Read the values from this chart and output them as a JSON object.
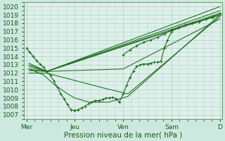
{
  "background_color": "#cce8df",
  "plot_bg_color": "#dff0eb",
  "grid_color": "#aacfc4",
  "line_color": "#1a6b1a",
  "ylabel_values": [
    1007,
    1008,
    1009,
    1010,
    1011,
    1012,
    1013,
    1014,
    1015,
    1016,
    1017,
    1018,
    1019,
    1020
  ],
  "xtick_labels": [
    "Mer",
    "Jeu",
    "Ven",
    "Sam",
    "D"
  ],
  "xlabel": "Pression niveau de la mer( hPa )",
  "ylim": [
    1006.5,
    1020.5
  ],
  "xlim": [
    -0.05,
    4.05
  ],
  "label_fontsize": 7.5,
  "tick_fontsize": 6.5,
  "obs_x": [
    0,
    0.07,
    0.14,
    0.21,
    0.28,
    0.35,
    0.42,
    0.5,
    0.57,
    0.64,
    0.71,
    0.78,
    0.85,
    0.92,
    1.0,
    1.07,
    1.14,
    1.21,
    1.28,
    1.35,
    1.42,
    1.5,
    1.57,
    1.64,
    1.71,
    1.78,
    1.85,
    1.92,
    2.0,
    2.07,
    2.14,
    2.21,
    2.28,
    2.35,
    2.42,
    2.5,
    2.57,
    2.64,
    2.71,
    2.78,
    2.85,
    2.92,
    3.0,
    3.14,
    3.28,
    3.42,
    3.57,
    3.71,
    3.85,
    4.0
  ],
  "obs_y": [
    1015.0,
    1014.5,
    1014.0,
    1013.5,
    1013.1,
    1012.7,
    1012.2,
    1011.7,
    1011.0,
    1010.3,
    1009.5,
    1008.9,
    1008.2,
    1007.6,
    1007.5,
    1007.6,
    1007.8,
    1008.0,
    1008.3,
    1008.5,
    1008.7,
    1008.7,
    1008.8,
    1009.0,
    1009.0,
    1009.1,
    1008.9,
    1008.5,
    1009.5,
    1010.5,
    1011.5,
    1012.2,
    1012.8,
    1013.0,
    1013.1,
    1013.1,
    1013.2,
    1013.3,
    1013.3,
    1013.4,
    1015.0,
    1016.0,
    1017.0,
    1017.5,
    1017.8,
    1018.0,
    1018.2,
    1018.5,
    1018.7,
    1019.0
  ],
  "fan_lines": [
    {
      "x": [
        0.05,
        0.42,
        4.0
      ],
      "y": [
        1013.2,
        1012.2,
        1020.0
      ]
    },
    {
      "x": [
        0.05,
        0.42,
        4.0
      ],
      "y": [
        1013.0,
        1012.2,
        1019.5
      ]
    },
    {
      "x": [
        0.05,
        0.42,
        4.0
      ],
      "y": [
        1012.8,
        1012.2,
        1019.2
      ]
    },
    {
      "x": [
        0.05,
        0.42,
        4.0
      ],
      "y": [
        1012.5,
        1012.2,
        1019.0
      ]
    },
    {
      "x": [
        0.05,
        0.42,
        2.0,
        4.0
      ],
      "y": [
        1012.3,
        1012.2,
        1012.5,
        1018.5
      ]
    },
    {
      "x": [
        0.05,
        0.42,
        1.6,
        2.1,
        4.0
      ],
      "y": [
        1012.0,
        1012.0,
        1010.2,
        1009.5,
        1018.8
      ]
    },
    {
      "x": [
        0.05,
        0.35,
        0.6,
        0.85,
        1.0,
        1.3,
        1.7,
        2.1,
        4.0
      ],
      "y": [
        1012.5,
        1011.8,
        1010.5,
        1009.5,
        1009.0,
        1008.5,
        1008.5,
        1009.2,
        1019.0
      ]
    }
  ],
  "upper_marker_x": [
    2.0,
    2.14,
    2.28,
    2.42,
    2.57,
    2.71,
    2.85,
    3.0,
    3.14,
    3.28,
    3.42,
    3.57,
    3.71,
    3.85,
    4.0
  ],
  "upper_marker_y": [
    1014.2,
    1014.8,
    1015.3,
    1015.7,
    1016.0,
    1016.3,
    1016.7,
    1017.2,
    1017.5,
    1017.8,
    1018.0,
    1018.2,
    1018.5,
    1018.8,
    1019.2
  ]
}
